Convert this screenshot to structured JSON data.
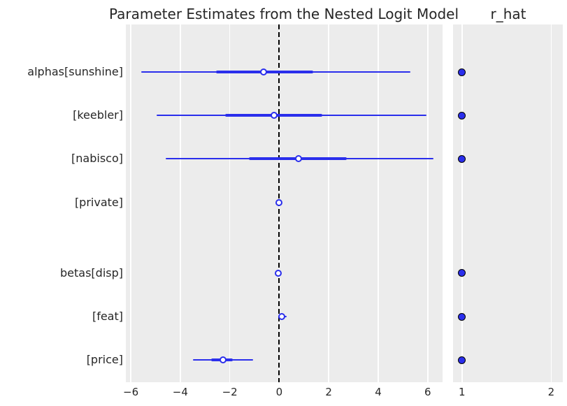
{
  "titles": {
    "left": "Parameter Estimates from the Nested Logit Model",
    "right": "r_hat"
  },
  "colors": {
    "accent_blue": "#2a2eec",
    "panel_bg": "#ececec",
    "gridline": "#ffffff",
    "zero_line": "#000000",
    "dot_edge": "#000000",
    "text": "#262626",
    "background": "#ffffff"
  },
  "chart_data": {
    "type": "forest",
    "title": "Parameter Estimates from the Nested Logit Model",
    "rhat_title": "r_hat",
    "legend_position": "none",
    "grid": "vertical-white-on-gray",
    "rows": [
      {
        "label": "alphas[sunshine]",
        "group": "alphas",
        "hdi_94": [
          -5.57,
          5.3
        ],
        "hdi_50": [
          -2.55,
          1.36
        ],
        "median": -0.62,
        "r_hat": 1.0
      },
      {
        "label": "[keebler]",
        "group": "alphas",
        "hdi_94": [
          -4.95,
          5.95
        ],
        "hdi_50": [
          -2.18,
          1.73
        ],
        "median": -0.2,
        "r_hat": 1.0
      },
      {
        "label": "[nabisco]",
        "group": "alphas",
        "hdi_94": [
          -4.58,
          6.23
        ],
        "hdi_50": [
          -1.24,
          2.72
        ],
        "median": 0.78,
        "r_hat": 1.0
      },
      {
        "label": "[private]",
        "group": "alphas",
        "hdi_94": [
          0.0,
          0.0
        ],
        "hdi_50": [
          0.0,
          0.0
        ],
        "median": 0.0,
        "r_hat": null
      },
      {
        "label": "betas[disp]",
        "group": "betas",
        "hdi_94": [
          -0.06,
          0.04
        ],
        "hdi_50": [
          -0.04,
          0.01
        ],
        "median": -0.03,
        "r_hat": 1.0
      },
      {
        "label": "[feat]",
        "group": "betas",
        "hdi_94": [
          -0.05,
          0.31
        ],
        "hdi_50": [
          0.05,
          0.18
        ],
        "median": 0.11,
        "r_hat": 1.0
      },
      {
        "label": "[price]",
        "group": "betas",
        "hdi_94": [
          -3.48,
          -1.07
        ],
        "hdi_50": [
          -2.74,
          -1.87
        ],
        "median": -2.26,
        "r_hat": 1.0
      }
    ],
    "left_axis": {
      "xlim": [
        -6.2,
        6.6
      ],
      "ticks": [
        -6,
        -4,
        -2,
        0,
        2,
        4,
        6
      ],
      "tick_labels": [
        "−6",
        "−4",
        "−2",
        "0",
        "2",
        "4",
        "6"
      ],
      "zero_line": 0
    },
    "right_axis": {
      "xlim": [
        0.9,
        2.13
      ],
      "ticks": [
        1,
        2
      ],
      "tick_labels": [
        "1",
        "2"
      ]
    }
  }
}
